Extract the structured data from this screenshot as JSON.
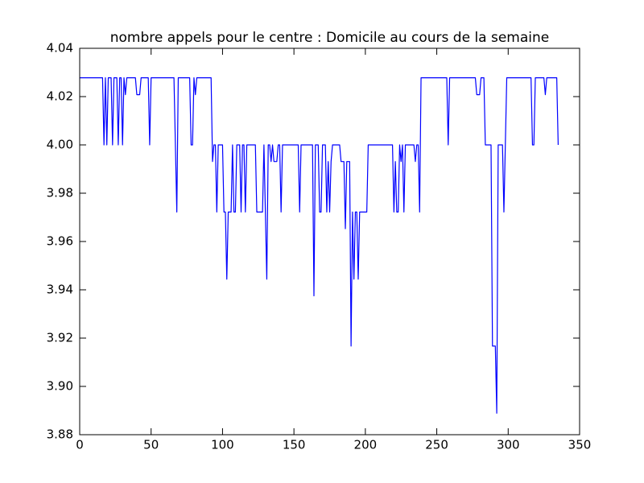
{
  "chart_data": {
    "type": "line",
    "title": "nombre appels pour le centre : Domicile au cours de la semaine",
    "xlim": [
      0,
      350
    ],
    "xticks": [
      0,
      50,
      100,
      150,
      200,
      250,
      300,
      350
    ],
    "ylim": [
      3.88,
      4.04
    ],
    "yticks": [
      3.88,
      {
        "value": 3.9,
        "label": "3.90"
      },
      3.92,
      3.94,
      3.96,
      3.98,
      {
        "value": 4,
        "label": "4.00"
      },
      4.02,
      4.04
    ],
    "grid": false,
    "series": [
      {
        "color": "#0000ff",
        "values": [
          4.0278,
          4.0278,
          4.0278,
          4.0278,
          4.0278,
          4.0278,
          4.0278,
          4.0278,
          4.0278,
          4.0278,
          4.0278,
          4.0278,
          4.0278,
          4.0278,
          4.0278,
          4.0278,
          4.0278,
          4,
          4.0278,
          4,
          4.0278,
          4.0278,
          4.0278,
          4,
          4.0278,
          4.0278,
          4.0278,
          4,
          4.0278,
          4.0278,
          4,
          4.0278,
          4.0208,
          4.0278,
          4.0278,
          4.0278,
          4.0278,
          4.0278,
          4.0278,
          4.0278,
          4.0208,
          4.0208,
          4.0208,
          4.0278,
          4.0278,
          4.0278,
          4.0278,
          4.0278,
          4.0278,
          4,
          4.0278,
          4.0278,
          4.0278,
          4.0278,
          4.0278,
          4.0278,
          4.0278,
          4.0278,
          4.0278,
          4.0278,
          4.0278,
          4.0278,
          4.0278,
          4.0278,
          4.0278,
          4.0278,
          4.0278,
          4,
          3.9722,
          4.0278,
          4.0278,
          4.0278,
          4.0278,
          4.0278,
          4.0278,
          4.0278,
          4.0278,
          4.0278,
          4,
          4,
          4.0278,
          4.0208,
          4.0278,
          4.0278,
          4.0278,
          4.0278,
          4.0278,
          4.0278,
          4.0278,
          4.0278,
          4.0278,
          4.0278,
          4.0278,
          3.9931,
          4,
          4,
          3.9722,
          4,
          4,
          4,
          4,
          3.9722,
          3.9722,
          3.9444,
          3.9722,
          3.9722,
          3.9722,
          4,
          3.9722,
          3.9722,
          4,
          4,
          4,
          3.9722,
          4,
          4,
          3.9722,
          4,
          4,
          4,
          4,
          4,
          4,
          4,
          3.9722,
          3.9722,
          3.9722,
          3.9722,
          3.9722,
          4,
          3.9722,
          3.9444,
          4,
          4,
          3.9931,
          4,
          3.9931,
          3.9931,
          3.9931,
          4,
          4,
          3.9722,
          4,
          4,
          4,
          4,
          4,
          4,
          4,
          4,
          4,
          4,
          4,
          4,
          3.9722,
          4,
          4,
          4,
          4,
          4,
          4,
          4,
          4,
          4,
          3.9375,
          4,
          4,
          4,
          3.9722,
          3.9722,
          4,
          4,
          4,
          3.9722,
          3.9931,
          3.9722,
          3.9931,
          4,
          4,
          4,
          4,
          4,
          4,
          3.9931,
          3.9931,
          3.9931,
          3.9653,
          3.9931,
          3.9931,
          3.9931,
          3.9167,
          3.9722,
          3.9444,
          3.9722,
          3.9722,
          3.9444,
          3.9722,
          3.9722,
          3.9722,
          3.9722,
          3.9722,
          3.9722,
          4,
          4,
          4,
          4,
          4,
          4,
          4,
          4,
          4,
          4,
          4,
          4,
          4,
          4,
          4,
          4,
          4,
          4,
          3.9722,
          3.9931,
          3.9722,
          3.9722,
          4,
          3.9931,
          4,
          3.9722,
          4,
          4,
          4,
          4,
          4,
          4,
          4,
          3.9931,
          4,
          4,
          3.9722,
          4.0278,
          4.0278,
          4.0278,
          4.0278,
          4.0278,
          4.0278,
          4.0278,
          4.0278,
          4.0278,
          4.0278,
          4.0278,
          4.0278,
          4.0278,
          4.0278,
          4.0278,
          4.0278,
          4.0278,
          4.0278,
          4.0278,
          4,
          4.0278,
          4.0278,
          4.0278,
          4.0278,
          4.0278,
          4.0278,
          4.0278,
          4.0278,
          4.0278,
          4.0278,
          4.0278,
          4.0278,
          4.0278,
          4.0278,
          4.0278,
          4.0278,
          4.0278,
          4.0278,
          4.0278,
          4.0208,
          4.0208,
          4.0208,
          4.0278,
          4.0278,
          4.0278,
          4,
          4,
          4,
          4,
          4,
          3.9167,
          3.9167,
          3.9167,
          3.8889,
          4,
          4,
          4,
          4,
          3.9722,
          4,
          4.0278,
          4.0278,
          4.0278,
          4.0278,
          4.0278,
          4.0278,
          4.0278,
          4.0278,
          4.0278,
          4.0278,
          4.0278,
          4.0278,
          4.0278,
          4.0278,
          4.0278,
          4.0278,
          4.0278,
          4.0278,
          4,
          4,
          4.0278,
          4.0278,
          4.0278,
          4.0278,
          4.0278,
          4.0278,
          4.0278,
          4.0208,
          4.0278,
          4.0278,
          4.0278,
          4.0278,
          4.0278,
          4.0278,
          4.0278,
          4.0278,
          4
        ]
      }
    ]
  }
}
